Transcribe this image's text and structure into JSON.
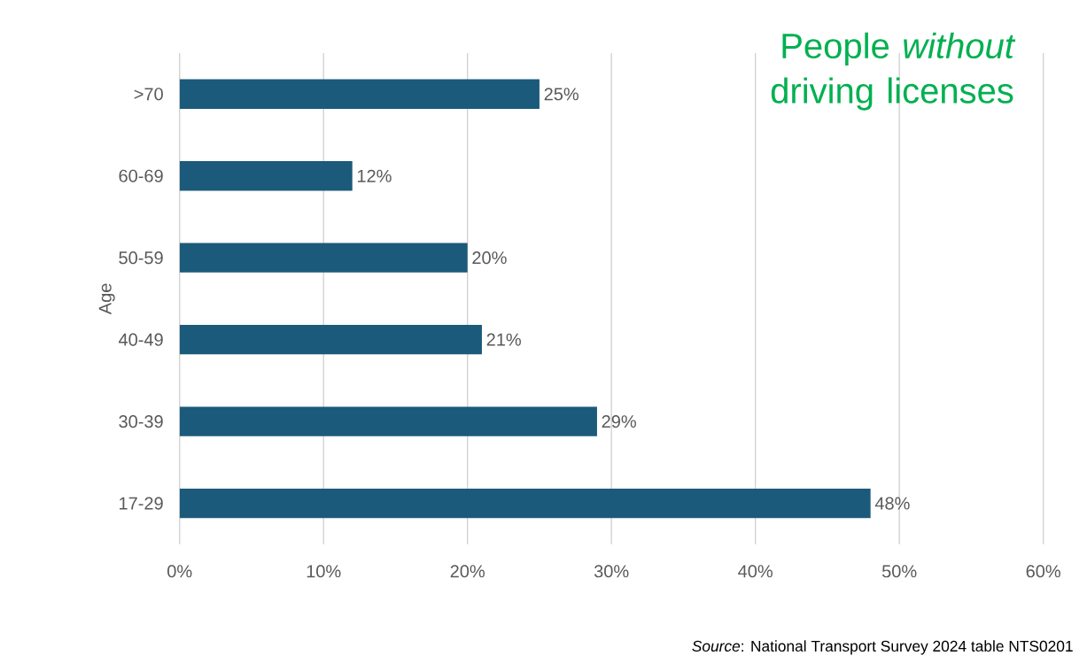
{
  "chart_data": {
    "type": "bar",
    "orientation": "horizontal",
    "title": "People *without* driving licenses",
    "ylabel": "Age",
    "categories": [
      ">70",
      "60-69",
      "50-59",
      "40-49",
      "30-39",
      "17-29"
    ],
    "values": [
      25,
      12,
      20,
      21,
      29,
      48
    ],
    "value_labels": [
      "25%",
      "12%",
      "20%",
      "21%",
      "29%",
      "48%"
    ],
    "color": "#1b5a7a",
    "xlim": [
      0,
      60
    ],
    "xticks": [
      {
        "value": 0,
        "label": "0%"
      },
      {
        "value": 10,
        "label": "10%"
      },
      {
        "value": 20,
        "label": "20%"
      },
      {
        "value": 30,
        "label": "30%"
      },
      {
        "value": 40,
        "label": "40%"
      },
      {
        "value": 50,
        "label": "50%"
      },
      {
        "value": 60,
        "label": "60%"
      }
    ],
    "grid": "x",
    "annotations": [
      "*Source*: National Transport Survey 2024 table NTS0201"
    ]
  }
}
